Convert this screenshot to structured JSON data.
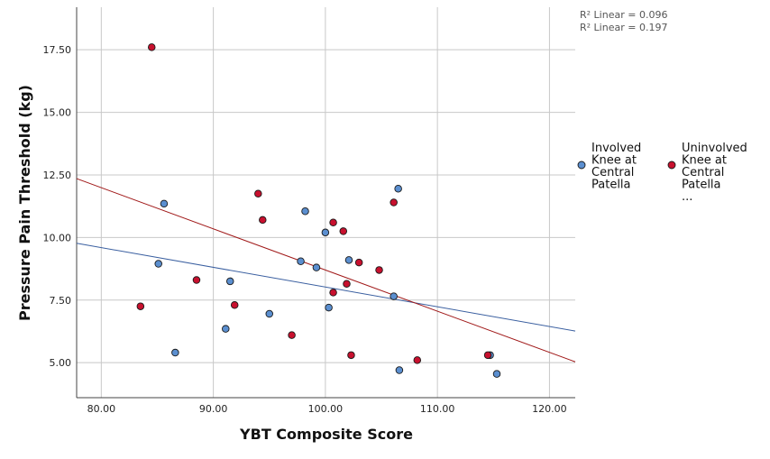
{
  "chart_data": {
    "type": "scatter",
    "xlabel": "YBT Composite Score",
    "ylabel": "Pressure Pain Threshold (kg)",
    "xlim": [
      77.8,
      122.3
    ],
    "ylim": [
      3.6,
      19.2
    ],
    "x_ticks": [
      80,
      90,
      100,
      110,
      120
    ],
    "x_tick_labels": [
      "80.00",
      "90.00",
      "100.00",
      "110.00",
      "120.00"
    ],
    "y_ticks": [
      5,
      7.5,
      10,
      12.5,
      15,
      17.5
    ],
    "y_tick_labels": [
      "5.00",
      "7.50",
      "10.00",
      "12.50",
      "15.00",
      "17.50"
    ],
    "grid": true,
    "annotations": [
      "R² Linear = 0.096",
      "R² Linear = 0.197"
    ],
    "legend_position": "right",
    "series": [
      {
        "name": "Involved Knee at Central Patella",
        "legend_lines": [
          "Involved",
          "Knee at",
          "Central",
          "Patella"
        ],
        "color": "#5b8fd0",
        "points": [
          [
            85.6,
            11.35
          ],
          [
            85.1,
            8.95
          ],
          [
            86.6,
            5.4
          ],
          [
            91.1,
            6.35
          ],
          [
            91.5,
            8.25
          ],
          [
            95,
            6.95
          ],
          [
            97.8,
            9.05
          ],
          [
            98.2,
            11.05
          ],
          [
            99.2,
            8.8
          ],
          [
            100,
            10.2
          ],
          [
            100.3,
            7.2
          ],
          [
            102.1,
            9.1
          ],
          [
            106.1,
            7.65
          ],
          [
            106.5,
            11.95
          ],
          [
            106.6,
            4.7
          ],
          [
            114.7,
            5.3
          ],
          [
            115.3,
            4.55
          ]
        ],
        "fit": {
          "slope": -0.0788,
          "intercept": 15.9,
          "line_color": "#3a5fa0"
        }
      },
      {
        "name": "Uninvolved Knee at Central Patella",
        "legend_lines": [
          "Uninvolved",
          "Knee at",
          "Central",
          "Patella",
          "..."
        ],
        "color": "#c8102e",
        "points": [
          [
            83.5,
            7.25
          ],
          [
            84.5,
            17.6
          ],
          [
            88.5,
            8.3
          ],
          [
            91.9,
            7.3
          ],
          [
            94,
            11.75
          ],
          [
            94.4,
            10.7
          ],
          [
            97,
            6.1
          ],
          [
            100.7,
            10.6
          ],
          [
            100.7,
            7.8
          ],
          [
            101.6,
            10.25
          ],
          [
            101.9,
            8.15
          ],
          [
            102.3,
            5.3
          ],
          [
            103,
            9
          ],
          [
            104.8,
            8.7
          ],
          [
            106.1,
            11.4
          ],
          [
            108.2,
            5.1
          ],
          [
            114.5,
            5.3
          ]
        ],
        "fit": {
          "slope": -0.1645,
          "intercept": 25.15,
          "line_color": "#a01818"
        }
      }
    ]
  }
}
